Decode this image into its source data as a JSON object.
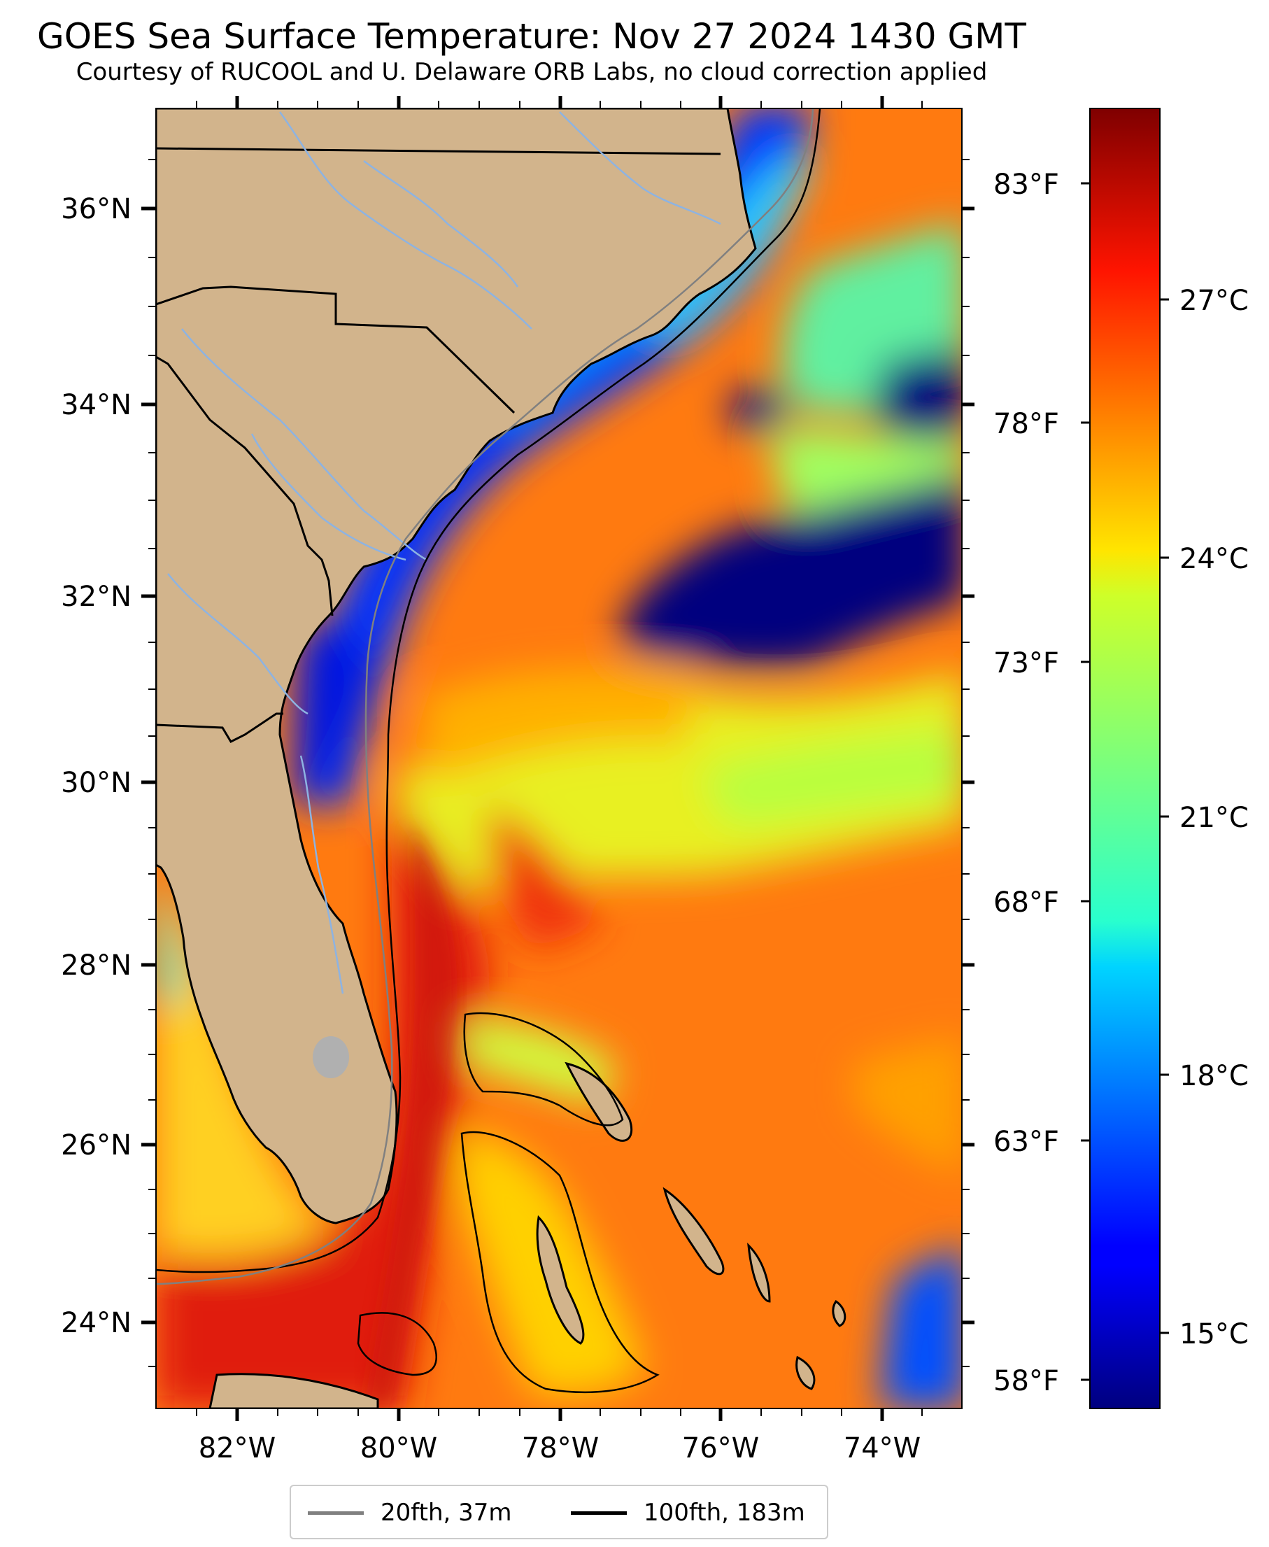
{
  "title": "GOES Sea Surface Temperature: Nov 27 2024 1430 GMT",
  "subtitle": "Courtesy of RUCOOL and U. Delaware ORB Labs, no cloud correction applied",
  "map": {
    "lat_labels": [
      "36°N",
      "34°N",
      "32°N",
      "30°N",
      "28°N",
      "26°N",
      "24°N"
    ],
    "lon_labels": [
      "82°W",
      "80°W",
      "78°W",
      "76°W",
      "74°W"
    ],
    "lat_range": [
      23.1,
      37.0
    ],
    "lon_range": [
      -83.0,
      -73.0
    ],
    "fahrenheit_labels": [
      "83°F",
      "78°F",
      "73°F",
      "68°F",
      "63°F",
      "58°F"
    ],
    "land_color": "#d2b48c",
    "colors": {
      "cold": "#00007f",
      "cool": "#0060ff",
      "mid": "#20e0e0",
      "warm": "#ffd000",
      "hot": "#ff6000",
      "very_hot": "#dd1010"
    }
  },
  "colorbar": {
    "labels": [
      "27°C",
      "24°C",
      "21°C",
      "18°C",
      "15°C"
    ],
    "colormap": "jet",
    "celsius_range": [
      13.2,
      29.8
    ]
  },
  "legend": {
    "items": [
      {
        "label": "20fth, 37m",
        "color": "#808080"
      },
      {
        "label": "100fth, 183m",
        "color": "#000000"
      }
    ]
  }
}
